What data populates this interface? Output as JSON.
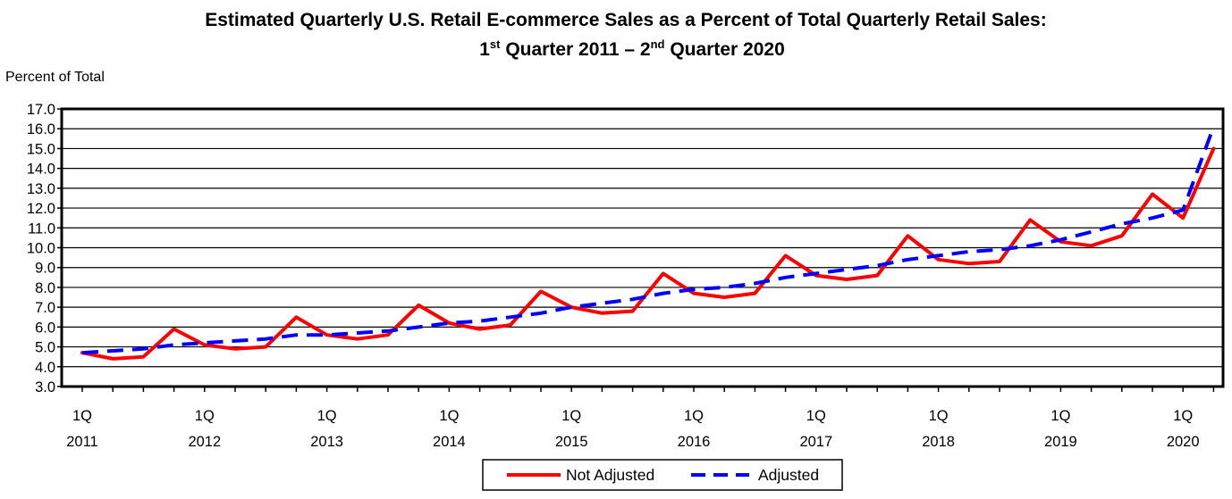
{
  "chart_data": {
    "type": "line",
    "title_main": "Estimated Quarterly U.S. Retail E-commerce Sales as a Percent of Total Quarterly Retail Sales:",
    "title_sub": {
      "part1": "1",
      "sup1": "st",
      "part2": " Quarter 2011 – 2",
      "sup2": "nd",
      "part3": " Quarter 2020"
    },
    "ylabel": "Percent of Total",
    "ylim": [
      3.0,
      17.0
    ],
    "ytick_step": 1.0,
    "yticks": [
      "3.0",
      "4.0",
      "5.0",
      "6.0",
      "7.0",
      "8.0",
      "9.0",
      "10.0",
      "11.0",
      "12.0",
      "13.0",
      "14.0",
      "15.0",
      "16.0",
      "17.0"
    ],
    "grid": true,
    "x": [
      "1Q 2011",
      "2Q 2011",
      "3Q 2011",
      "4Q 2011",
      "1Q 2012",
      "2Q 2012",
      "3Q 2012",
      "4Q 2012",
      "1Q 2013",
      "2Q 2013",
      "3Q 2013",
      "4Q 2013",
      "1Q 2014",
      "2Q 2014",
      "3Q 2014",
      "4Q 2014",
      "1Q 2015",
      "2Q 2015",
      "3Q 2015",
      "4Q 2015",
      "1Q 2016",
      "2Q 2016",
      "3Q 2016",
      "4Q 2016",
      "1Q 2017",
      "2Q 2017",
      "3Q 2017",
      "4Q 2017",
      "1Q 2018",
      "2Q 2018",
      "3Q 2018",
      "4Q 2018",
      "1Q 2019",
      "2Q 2019",
      "3Q 2019",
      "4Q 2019",
      "1Q 2020",
      "2Q 2020"
    ],
    "xtick_labels": [
      {
        "quarter": "1Q",
        "year": "2011"
      },
      {
        "quarter": "1Q",
        "year": "2012"
      },
      {
        "quarter": "1Q",
        "year": "2013"
      },
      {
        "quarter": "1Q",
        "year": "2014"
      },
      {
        "quarter": "1Q",
        "year": "2015"
      },
      {
        "quarter": "1Q",
        "year": "2016"
      },
      {
        "quarter": "1Q",
        "year": "2017"
      },
      {
        "quarter": "1Q",
        "year": "2018"
      },
      {
        "quarter": "1Q",
        "year": "2019"
      },
      {
        "quarter": "1Q",
        "year": "2020"
      }
    ],
    "series": [
      {
        "name": "Not Adjusted",
        "color": "#ff0000",
        "style": "solid",
        "values": [
          4.7,
          4.4,
          4.5,
          5.9,
          5.1,
          4.9,
          5.0,
          6.5,
          5.6,
          5.4,
          5.6,
          7.1,
          6.2,
          5.9,
          6.1,
          7.8,
          7.0,
          6.7,
          6.8,
          8.7,
          7.7,
          7.5,
          7.7,
          9.6,
          8.6,
          8.4,
          8.6,
          10.6,
          9.4,
          9.2,
          9.3,
          11.4,
          10.3,
          10.1,
          10.6,
          12.7,
          11.5,
          15.0
        ]
      },
      {
        "name": "Adjusted",
        "color": "#0000ff",
        "style": "dashed",
        "values": [
          4.7,
          4.8,
          4.9,
          5.1,
          5.2,
          5.3,
          5.4,
          5.6,
          5.6,
          5.7,
          5.8,
          6.0,
          6.2,
          6.3,
          6.5,
          6.7,
          7.0,
          7.2,
          7.4,
          7.7,
          7.9,
          8.0,
          8.2,
          8.5,
          8.7,
          8.9,
          9.1,
          9.4,
          9.6,
          9.8,
          9.9,
          10.1,
          10.4,
          10.8,
          11.2,
          11.5,
          11.9,
          16.1
        ]
      }
    ],
    "legend_placement": "bottom-center"
  }
}
